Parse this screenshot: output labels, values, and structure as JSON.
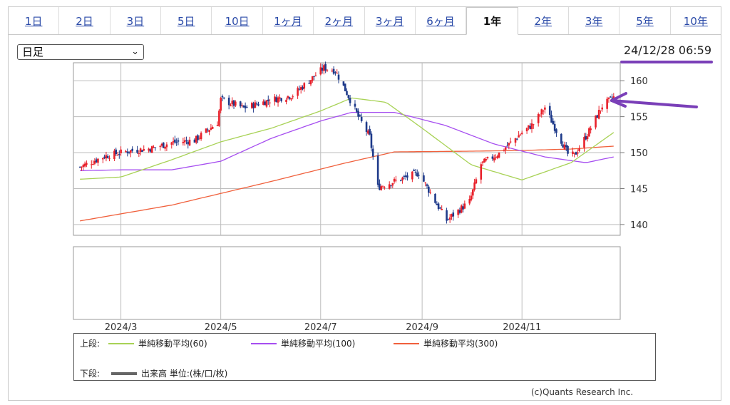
{
  "tabs": [
    {
      "label": "1日",
      "active": false
    },
    {
      "label": "2日",
      "active": false
    },
    {
      "label": "3日",
      "active": false
    },
    {
      "label": "5日",
      "active": false
    },
    {
      "label": "10日",
      "active": false
    },
    {
      "label": "1ヶ月",
      "active": false
    },
    {
      "label": "2ヶ月",
      "active": false
    },
    {
      "label": "3ヶ月",
      "active": false
    },
    {
      "label": "6ヶ月",
      "active": false
    },
    {
      "label": "1年",
      "active": true
    },
    {
      "label": "2年",
      "active": false
    },
    {
      "label": "3年",
      "active": false
    },
    {
      "label": "5年",
      "active": false
    },
    {
      "label": "10年",
      "active": false
    }
  ],
  "period_select": {
    "value": "日足"
  },
  "timestamp": "24/12/28 06:59",
  "annotation_color": "#7a3fb8",
  "chart_data": {
    "type": "candlestick",
    "y_ticks": [
      "160",
      "155",
      "150",
      "145",
      "140"
    ],
    "ylim": [
      138.5,
      162.5
    ],
    "x_ticks": [
      "2024/3",
      "2024/5",
      "2024/7",
      "2024/9",
      "2024/11"
    ],
    "grid": true,
    "legend_placement": "bottom",
    "close_series": {
      "dates": [
        "2024/2/5",
        "2024/2/20",
        "2024/3/5",
        "2024/3/20",
        "2024/4/1",
        "2024/4/15",
        "2024/4/29",
        "2024/5/1",
        "2024/5/15",
        "2024/5/31",
        "2024/6/14",
        "2024/6/28",
        "2024/7/3",
        "2024/7/10",
        "2024/7/17",
        "2024/7/24",
        "2024/7/31",
        "2024/8/5",
        "2024/8/15",
        "2024/8/30",
        "2024/9/10",
        "2024/9/16",
        "2024/9/30",
        "2024/10/7",
        "2024/10/18",
        "2024/10/31",
        "2024/11/8",
        "2024/11/15",
        "2024/11/29",
        "2024/12/3",
        "2024/12/12",
        "2024/12/20",
        "2024/12/27"
      ],
      "values": [
        148.0,
        149.5,
        150.2,
        150.6,
        151.4,
        151.7,
        154.2,
        157.4,
        156.2,
        157.3,
        158.0,
        160.8,
        161.8,
        161.4,
        158.3,
        155.0,
        152.2,
        145.2,
        146.0,
        147.2,
        142.8,
        140.6,
        143.2,
        148.4,
        149.9,
        152.6,
        154.0,
        156.3,
        149.8,
        149.6,
        153.0,
        156.5,
        157.7
      ]
    },
    "sma60": {
      "dates": [
        "2024/2/5",
        "2024/3/1",
        "2024/4/1",
        "2024/5/1",
        "2024/6/1",
        "2024/7/1",
        "2024/7/20",
        "2024/8/10",
        "2024/9/1",
        "2024/10/1",
        "2024/11/1",
        "2024/12/1",
        "2024/12/27"
      ],
      "values": [
        146.3,
        146.6,
        149.0,
        151.5,
        153.4,
        155.8,
        157.6,
        157.0,
        153.4,
        148.3,
        146.2,
        148.6,
        152.8
      ]
    },
    "sma100": {
      "dates": [
        "2024/2/5",
        "2024/3/1",
        "2024/4/1",
        "2024/5/1",
        "2024/6/1",
        "2024/7/1",
        "2024/7/20",
        "2024/8/15",
        "2024/9/15",
        "2024/10/15",
        "2024/11/15",
        "2024/12/10",
        "2024/12/27"
      ],
      "values": [
        147.5,
        147.6,
        147.6,
        148.8,
        152.0,
        154.4,
        155.6,
        155.6,
        153.8,
        151.2,
        149.4,
        148.6,
        149.4
      ]
    },
    "sma300": {
      "dates": [
        "2024/2/5",
        "2024/4/1",
        "2024/6/1",
        "2024/7/15",
        "2024/8/15",
        "2024/10/1",
        "2024/11/1",
        "2024/12/1",
        "2024/12/27"
      ],
      "values": [
        140.5,
        142.7,
        146.0,
        148.5,
        150.1,
        150.2,
        150.3,
        150.5,
        150.9
      ]
    }
  },
  "legend": {
    "upper_label": "上段:",
    "lower_label": "下段:",
    "items": [
      {
        "label": "単純移動平均(60)",
        "color": "#a8d256"
      },
      {
        "label": "単純移動平均(100)",
        "color": "#a64ef0"
      },
      {
        "label": "単純移動平均(300)",
        "color": "#f0603c"
      }
    ],
    "volume_label": "出来高 単位:(株/口/枚)"
  },
  "copyright": "(c)Quants Research Inc.",
  "colors": {
    "up": "#e8202a",
    "down": "#1e3a8a",
    "grid": "#bdbdbd"
  }
}
